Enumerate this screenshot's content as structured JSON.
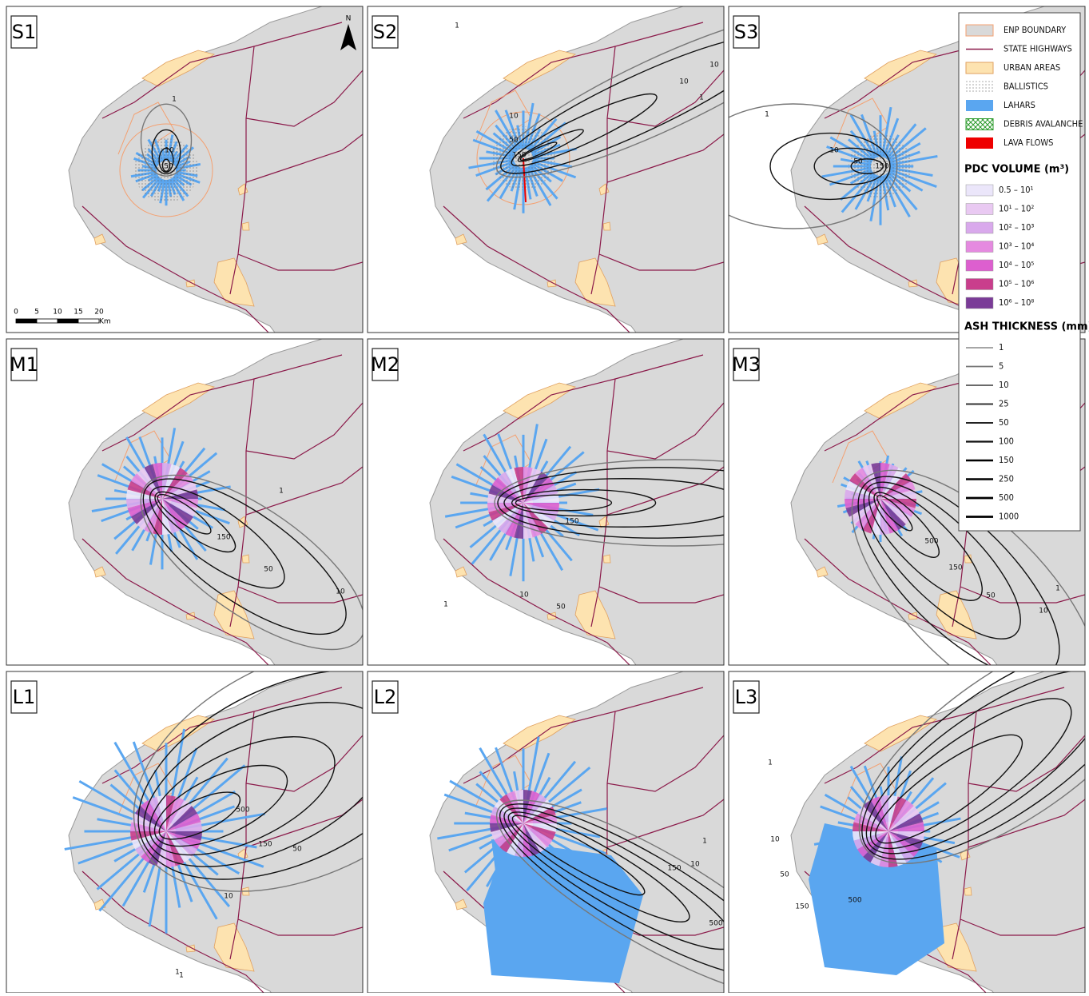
{
  "panels": [
    {
      "label": "S1",
      "contour_labels": [
        "1",
        "10",
        "50"
      ]
    },
    {
      "label": "S2",
      "contour_labels": [
        "1",
        "10",
        "10",
        "1",
        "10",
        "50",
        "150"
      ]
    },
    {
      "label": "S3",
      "contour_labels": [
        "1",
        "10",
        "50",
        "150"
      ]
    },
    {
      "label": "M1",
      "contour_labels": [
        "1",
        "150",
        "50",
        "10"
      ]
    },
    {
      "label": "M2",
      "contour_labels": [
        "150",
        "1",
        "10",
        "50"
      ]
    },
    {
      "label": "M3",
      "contour_labels": [
        "500",
        "150",
        "50",
        "1",
        "10"
      ]
    },
    {
      "label": "L1",
      "contour_labels": [
        "500",
        "150",
        "50",
        "10",
        "1",
        "1"
      ]
    },
    {
      "label": "L2",
      "contour_labels": [
        "1",
        "10",
        "150",
        "500"
      ]
    },
    {
      "label": "L3",
      "contour_labels": [
        "1",
        "10",
        "50",
        "150",
        "500"
      ]
    }
  ],
  "north": "N",
  "scale_bar": {
    "ticks": [
      "0",
      "5",
      "10",
      "15",
      "20"
    ],
    "unit": "Km"
  },
  "legend": {
    "items": [
      "ENP BOUNDARY",
      "STATE HIGHWAYS",
      "URBAN AREAS",
      "BALLISTICS",
      "LAHARS",
      "DEBRIS AVALANCHE",
      "LAVA FLOWS"
    ],
    "pdc_title": "PDC VOLUME (m³)",
    "pdc": [
      "0.5 – 10¹",
      "10¹ – 10²",
      "10² – 10³",
      "10³ – 10⁴",
      "10⁴ – 10⁵",
      "10⁵ – 10⁶",
      "10⁶ – 10⁸"
    ],
    "ash_title": "ASH THICKNESS (mm)",
    "ash": [
      "1",
      "5",
      "10",
      "25",
      "50",
      "100",
      "150",
      "250",
      "500",
      "1000"
    ]
  }
}
